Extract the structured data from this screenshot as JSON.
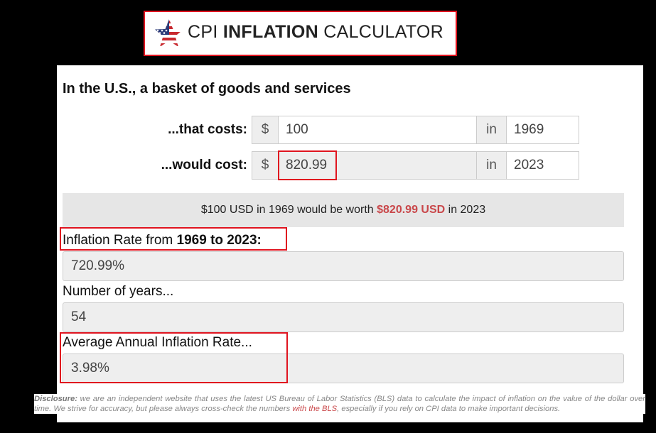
{
  "logo": {
    "prefix": "CPI ",
    "bold": "INFLATION",
    "suffix": " CALCULATOR"
  },
  "heading": "In the U.S., a basket of goods and services",
  "costs": {
    "label": "...that costs:",
    "currency": "$",
    "amount": "100",
    "in": "in",
    "year": "1969"
  },
  "would": {
    "label": "...would cost:",
    "currency": "$",
    "amount": "820.99",
    "in": "in",
    "year": "2023"
  },
  "summary": {
    "part1": "$100 USD in 1969 would be worth ",
    "highlight": "$820.99 USD",
    "part2": " in 2023"
  },
  "rate": {
    "label_prefix": "Inflation Rate from ",
    "label_bold": "1969 to 2023:",
    "value": "720.99%"
  },
  "years": {
    "label": "Number of years...",
    "value": "54"
  },
  "avg": {
    "label": "Average Annual Inflation Rate...",
    "value": "3.98%"
  },
  "disclosure": {
    "title": "Disclosure:",
    "text1": " we are an independent website that uses the latest US Bureau of Labor Statistics (BLS) data to calculate the impact of inflation on the value of the dollar over time. We strive for accuracy, but please always cross-check the numbers ",
    "link": "with the BLS",
    "text2": ", especially if you rely on CPI data to make important decisions."
  },
  "colors": {
    "highlight_red": "#e0141f",
    "accent": "#c9474a"
  },
  "icons": {
    "logo": "us-flag-star-icon"
  }
}
